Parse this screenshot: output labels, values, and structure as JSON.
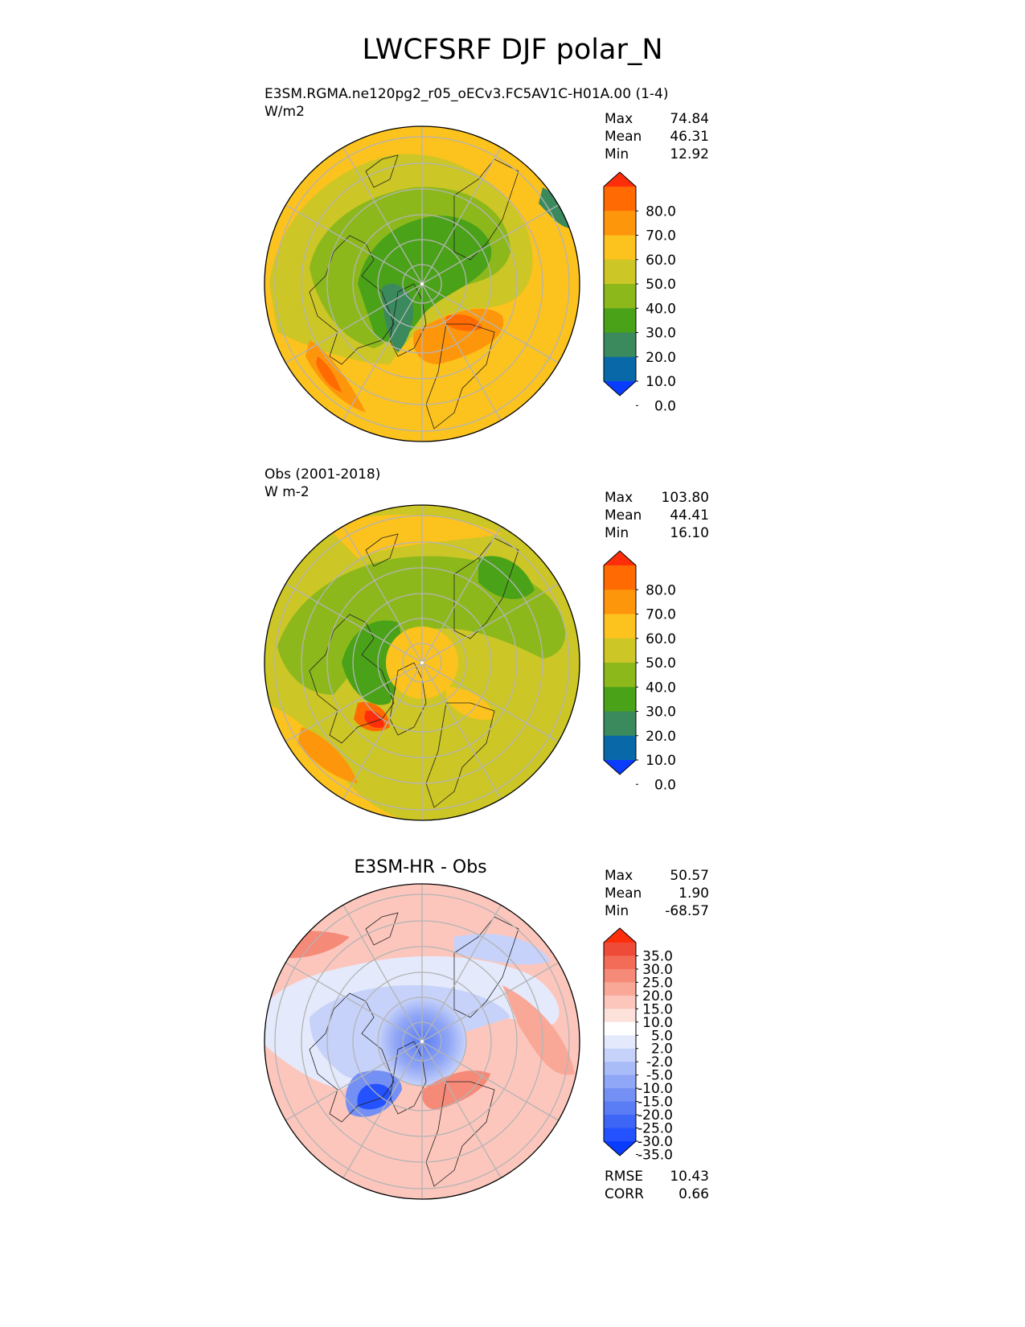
{
  "title": "LWCFSRF DJF polar_N",
  "panels": [
    {
      "subtitle_line1": "E3SM.RGMA.ne120pg2_r05_oECv3.FC5AV1C-H01A.00 (1-4)",
      "subtitle_line2": "W/m2",
      "center_title": "",
      "stats": [
        {
          "label": "Max",
          "value": "74.84"
        },
        {
          "label": "Mean",
          "value": "46.31"
        },
        {
          "label": "Min",
          "value": "12.92"
        }
      ],
      "colorbar_ticks": [
        "80.0",
        "70.0",
        "60.0",
        "50.0",
        "40.0",
        "30.0",
        "20.0",
        "10.0",
        "0.0"
      ]
    },
    {
      "subtitle_line1": "Obs (2001-2018)",
      "subtitle_line2": "W m-2",
      "center_title": "",
      "stats": [
        {
          "label": "Max",
          "value": "103.80"
        },
        {
          "label": "Mean",
          "value": "44.41"
        },
        {
          "label": "Min",
          "value": "16.10"
        }
      ],
      "colorbar_ticks": [
        "80.0",
        "70.0",
        "60.0",
        "50.0",
        "40.0",
        "30.0",
        "20.0",
        "10.0",
        "0.0"
      ]
    },
    {
      "subtitle_line1": "",
      "subtitle_line2": "",
      "center_title": "E3SM-HR - Obs",
      "stats": [
        {
          "label": "Max",
          "value": "50.57"
        },
        {
          "label": "Mean",
          "value": "1.90"
        },
        {
          "label": "Min",
          "value": "-68.57"
        }
      ],
      "colorbar_ticks": [
        "35.0",
        "30.0",
        "25.0",
        "20.0",
        "15.0",
        "10.0",
        "5.0",
        "2.0",
        "-2.0",
        "-5.0",
        "-10.0",
        "-15.0",
        "-20.0",
        "-25.0",
        "-30.0",
        "-35.0"
      ],
      "metrics": [
        {
          "label": "RMSE",
          "value": "10.43"
        },
        {
          "label": "CORR",
          "value": "0.66"
        }
      ]
    }
  ],
  "chart_data": [
    {
      "type": "heatmap",
      "projection": "north polar stereographic",
      "title": "E3SM.RGMA.ne120pg2_r05_oECv3.FC5AV1C-H01A.00 (1-4)",
      "units": "W/m2",
      "stats": {
        "max": 74.84,
        "mean": 46.31,
        "min": 12.92
      },
      "levels": [
        0,
        10,
        20,
        30,
        40,
        50,
        60,
        70,
        80
      ],
      "colors": [
        "#0a3cff",
        "#0868a8",
        "#3a8a5e",
        "#4aa218",
        "#8cb81c",
        "#ccc626",
        "#fcc21e",
        "#fe960c",
        "#ff6a02",
        "#ff2e0a"
      ],
      "colorbar_extend": "both"
    },
    {
      "type": "heatmap",
      "projection": "north polar stereographic",
      "title": "Obs (2001-2018)",
      "units": "W m-2",
      "stats": {
        "max": 103.8,
        "mean": 44.41,
        "min": 16.1
      },
      "levels": [
        0,
        10,
        20,
        30,
        40,
        50,
        60,
        70,
        80
      ],
      "colors": [
        "#0a3cff",
        "#0868a8",
        "#3a8a5e",
        "#4aa218",
        "#8cb81c",
        "#ccc626",
        "#fcc21e",
        "#fe960c",
        "#ff6a02",
        "#ff2e0a"
      ],
      "colorbar_extend": "both"
    },
    {
      "type": "heatmap",
      "projection": "north polar stereographic",
      "title": "E3SM-HR - Obs",
      "stats": {
        "max": 50.57,
        "mean": 1.9,
        "min": -68.57
      },
      "metrics": {
        "rmse": 10.43,
        "corr": 0.66
      },
      "levels": [
        -35,
        -30,
        -25,
        -20,
        -15,
        -10,
        -5,
        -2,
        2,
        5,
        10,
        15,
        20,
        25,
        30,
        35
      ],
      "colors": [
        "#0a3cff",
        "#2452ff",
        "#3e66f6",
        "#5a7cf4",
        "#7590f4",
        "#90a6f6",
        "#aabcf8",
        "#c6d2fa",
        "#e4eafc",
        "#ffffff",
        "#fde2dc",
        "#fcc6bc",
        "#f9a898",
        "#f68a78",
        "#f26c58",
        "#ee4c38",
        "#ff2e0a"
      ],
      "colorbar_extend": "both"
    }
  ]
}
